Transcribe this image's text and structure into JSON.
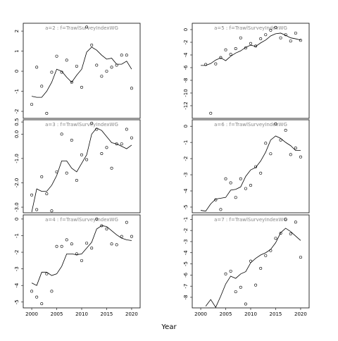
{
  "xlabel": "Year",
  "chart_data": [
    {
      "type": "scatter",
      "title": "a=2 : f=TrawlSurveyIndexWG",
      "x": [
        2000,
        2001,
        2002,
        2003,
        2004,
        2005,
        2006,
        2007,
        2008,
        2009,
        2010,
        2011,
        2012,
        2013,
        2014,
        2015,
        2016,
        2017,
        2018,
        2019,
        2020
      ],
      "series": [
        {
          "marker": "circle",
          "color": "#000000",
          "values": [
            -1.65,
            0.2,
            -0.75,
            -2.1,
            -0.05,
            0.75,
            -0.05,
            0.55,
            -0.55,
            0.25,
            -0.8,
            2.2,
            1.3,
            0.3,
            -0.25,
            0,
            0.2,
            0.3,
            0.8,
            0.8,
            -0.85
          ]
        },
        {
          "marker": "line",
          "color": "#000000",
          "values": [
            -1.25,
            -1.3,
            -1.3,
            -1.0,
            -0.55,
            0.1,
            0,
            -0.3,
            -0.55,
            -0.2,
            0.1,
            0.95,
            1.2,
            1.05,
            0.8,
            0.6,
            0.65,
            0.35,
            0.35,
            0.5,
            0.1
          ]
        }
      ],
      "xlim": [
        1998.3,
        2021.7
      ],
      "ylim": [
        -2.35,
        2.39
      ],
      "yticks": [
        -2,
        -1,
        0,
        1,
        2
      ]
    },
    {
      "type": "scatter",
      "title": "a=3 : f=TrawlSurveyIndexWG",
      "x": [
        2000,
        2001,
        2002,
        2003,
        2004,
        2005,
        2006,
        2007,
        2008,
        2009,
        2010,
        2011,
        2012,
        2013,
        2014,
        2015,
        2016,
        2017,
        2018,
        2019,
        2020
      ],
      "series": [
        {
          "marker": "circle",
          "color": "#000000",
          "values": [
            -2.5,
            -3.1,
            -1.75,
            -2.45,
            -3.15,
            -1.55,
            0.0,
            -1.6,
            -0.25,
            -1.9,
            -0.85,
            -1.05,
            0.45,
            0.2,
            -0.8,
            -0.55,
            -1.4,
            -0.4,
            -0.4,
            0.2,
            -0.15
          ]
        },
        {
          "marker": "line",
          "color": "#000000",
          "values": [
            -3.2,
            -2.25,
            -2.35,
            -2.35,
            -2.1,
            -1.7,
            -1.1,
            -1.1,
            -1.4,
            -1.55,
            -1.2,
            -0.85,
            0,
            0.25,
            0.15,
            -0.1,
            -0.35,
            -0.4,
            -0.5,
            -0.6,
            -0.45
          ]
        }
      ],
      "xlim": [
        1998.3,
        2021.7
      ],
      "ylim": [
        -3.23,
        0.59
      ],
      "yticks": [
        0.5,
        {
          "value": 0,
          "label": "0.0"
        },
        {
          "value": -1,
          "label": "-1.0"
        },
        {
          "value": -2,
          "label": "-2.0"
        },
        {
          "value": -3,
          "label": "-3.0"
        }
      ]
    },
    {
      "type": "scatter",
      "title": "a=4 : f=TrawlSurveyIndexWG",
      "x": [
        2000,
        2001,
        2002,
        2003,
        2004,
        2005,
        2006,
        2007,
        2008,
        2009,
        2010,
        2011,
        2012,
        2013,
        2014,
        2015,
        2016,
        2017,
        2018,
        2019,
        2020
      ],
      "series": [
        {
          "marker": "circle",
          "color": "#000000",
          "values": [
            -4.35,
            -4.7,
            -5.1,
            -3.3,
            -4.35,
            -1.65,
            -1.65,
            -1.25,
            -1.5,
            -2.1,
            -2.5,
            -1.45,
            -1.75,
            0,
            -0.4,
            -0.6,
            -1.5,
            -1.55,
            -1.05,
            -0.2,
            -1.05
          ]
        },
        {
          "marker": "line",
          "color": "#000000",
          "values": [
            -3.85,
            -4.0,
            -3.2,
            -3.2,
            -3.4,
            -3.3,
            -2.85,
            -2.1,
            -2.1,
            -2.15,
            -2.1,
            -1.75,
            -1.4,
            -0.6,
            -0.4,
            -0.45,
            -0.7,
            -0.95,
            -1.15,
            -1.25,
            -1.3
          ]
        }
      ],
      "xlim": [
        1998.3,
        2021.7
      ],
      "ylim": [
        -5.35,
        0.25
      ],
      "yticks": [
        -5,
        -4,
        -3,
        -2,
        -1,
        0
      ],
      "xticks": [
        2000,
        2005,
        2010,
        2015,
        2020
      ]
    },
    {
      "type": "scatter",
      "title": "a=5 : f=TrawlSurveyIndexWG",
      "x": [
        2000,
        2001,
        2002,
        2003,
        2004,
        2005,
        2006,
        2007,
        2008,
        2009,
        2010,
        2011,
        2012,
        2013,
        2014,
        2015,
        2016,
        2017,
        2018,
        2019,
        2020
      ],
      "series": [
        {
          "marker": "circle",
          "color": "#000000",
          "values": [
            null,
            -5.5,
            -13.2,
            -5.4,
            -4.4,
            -3.2,
            -3.9,
            -3.0,
            -1.3,
            -2.9,
            -2.2,
            -2.6,
            -1.45,
            -0.8,
            -0.1,
            0.35,
            -1.3,
            -0.8,
            -1.8,
            -0.55,
            -1.7
          ]
        },
        {
          "marker": "line",
          "color": "#000000",
          "values": [
            -5.65,
            -5.65,
            -5.35,
            -4.8,
            -4.45,
            -4.9,
            -4.2,
            -3.7,
            -3.35,
            -2.8,
            -2.45,
            -2.65,
            -2.1,
            -1.65,
            -1.0,
            -0.65,
            -0.55,
            -0.9,
            -1.3,
            -1.45,
            -1.65
          ]
        }
      ],
      "xlim": [
        1998.3,
        2021.7
      ],
      "ylim": [
        -14.0,
        1.0
      ],
      "yticks": [
        -12,
        -10,
        -8,
        -6,
        -4,
        -2,
        0
      ]
    },
    {
      "type": "scatter",
      "title": "a=6 : f=TrawlSurveyIndexWG",
      "x": [
        2000,
        2001,
        2002,
        2003,
        2004,
        2005,
        2006,
        2007,
        2008,
        2009,
        2010,
        2011,
        2012,
        2013,
        2014,
        2015,
        2016,
        2017,
        2018,
        2019,
        2020
      ],
      "series": [
        {
          "marker": "circle",
          "color": "#000000",
          "values": [
            null,
            null,
            null,
            -4.55,
            -5.15,
            -3.25,
            -3.5,
            -4.4,
            -3.25,
            -3.85,
            -3.65,
            -2.5,
            -2.9,
            -1.05,
            -1.7,
            0.15,
            -0.85,
            -0.25,
            -1.75,
            -1.35,
            -1.9
          ]
        },
        {
          "marker": "line",
          "color": "#000000",
          "values": [
            -5.2,
            -5.25,
            -4.8,
            -4.5,
            -4.45,
            -4.4,
            -3.95,
            -3.9,
            -3.75,
            -3.1,
            -2.7,
            -2.55,
            -2.15,
            -1.6,
            -0.85,
            -0.6,
            -0.75,
            -1.0,
            -1.2,
            -1.5,
            -1.5
          ]
        }
      ],
      "xlim": [
        1998.3,
        2021.7
      ],
      "ylim": [
        -5.35,
        0.4
      ],
      "yticks": [
        -5,
        -4,
        -3,
        -2,
        -1,
        0
      ]
    },
    {
      "type": "scatter",
      "title": "a=7 : f=TrawlSurveyIndexWG",
      "x": [
        2000,
        2001,
        2002,
        2003,
        2004,
        2005,
        2006,
        2007,
        2008,
        2009,
        2010,
        2011,
        2012,
        2013,
        2014,
        2015,
        2016,
        2017,
        2018,
        2019,
        2020
      ],
      "series": [
        {
          "marker": "circle",
          "color": "#000000",
          "values": [
            null,
            null,
            null,
            null,
            null,
            -5.9,
            -5.65,
            -7.5,
            -7.1,
            -8.6,
            -4.75,
            -6.9,
            -5.4,
            -4.25,
            -3.8,
            -2.7,
            -2.25,
            -1.0,
            -2.3,
            -1.25,
            -4.4
          ]
        },
        {
          "marker": "line",
          "color": "#000000",
          "values": [
            null,
            -8.8,
            -8.2,
            -8.9,
            -7.9,
            -6.8,
            -6.1,
            -6.3,
            -5.9,
            -5.7,
            -4.9,
            -4.5,
            -4.2,
            -4.0,
            -3.7,
            -3.1,
            -2.2,
            -1.8,
            -2.1,
            -2.5,
            -2.9
          ]
        }
      ],
      "xlim": [
        1998.3,
        2021.7
      ],
      "ylim": [
        -8.95,
        -0.6
      ],
      "yticks": [
        -8,
        -7,
        -6,
        -5,
        -4,
        -3,
        -2,
        -1
      ],
      "xticks": [
        2000,
        2005,
        2010,
        2015,
        2020
      ]
    }
  ]
}
